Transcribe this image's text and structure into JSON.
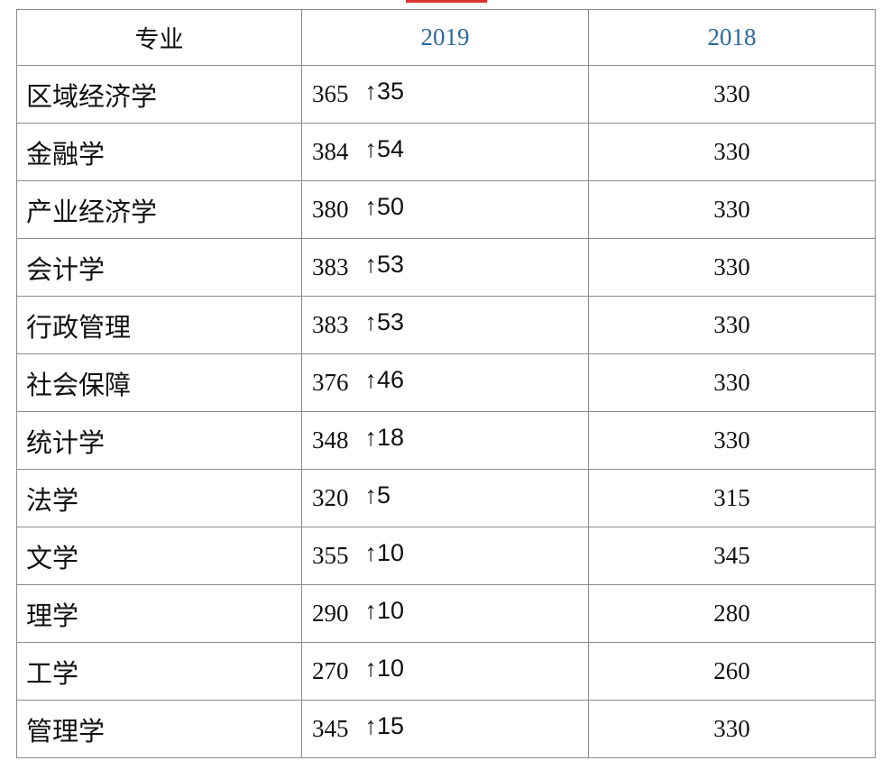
{
  "table": {
    "header": [
      "专业",
      "2019",
      "2018"
    ],
    "rows": [
      {
        "major": "区域经济学",
        "score_2019": 365,
        "change": "↑35",
        "score_2018": 330
      },
      {
        "major": "金融学",
        "score_2019": 384,
        "change": "↑54",
        "score_2018": 330
      },
      {
        "major": "产业经济学",
        "score_2019": 380,
        "change": "↑50",
        "score_2018": 330
      },
      {
        "major": "会计学",
        "score_2019": 383,
        "change": "↑53",
        "score_2018": 330
      },
      {
        "major": "行政管理",
        "score_2019": 383,
        "change": "↑53",
        "score_2018": 330
      },
      {
        "major": "社会保障",
        "score_2019": 376,
        "change": "↑46",
        "score_2018": 330
      },
      {
        "major": "统计学",
        "score_2019": 348,
        "change": "↑18",
        "score_2018": 330
      },
      {
        "major": "法学",
        "score_2019": 320,
        "change": "↑5",
        "score_2018": 315
      },
      {
        "major": "文学",
        "score_2019": 355,
        "change": "↑10",
        "score_2018": 345
      },
      {
        "major": "理学",
        "score_2019": 290,
        "change": "↑10",
        "score_2018": 280
      },
      {
        "major": "工学",
        "score_2019": 270,
        "change": "↑10",
        "score_2018": 260
      },
      {
        "major": "管理学",
        "score_2019": 345,
        "change": "↑15",
        "score_2018": 330
      }
    ]
  }
}
